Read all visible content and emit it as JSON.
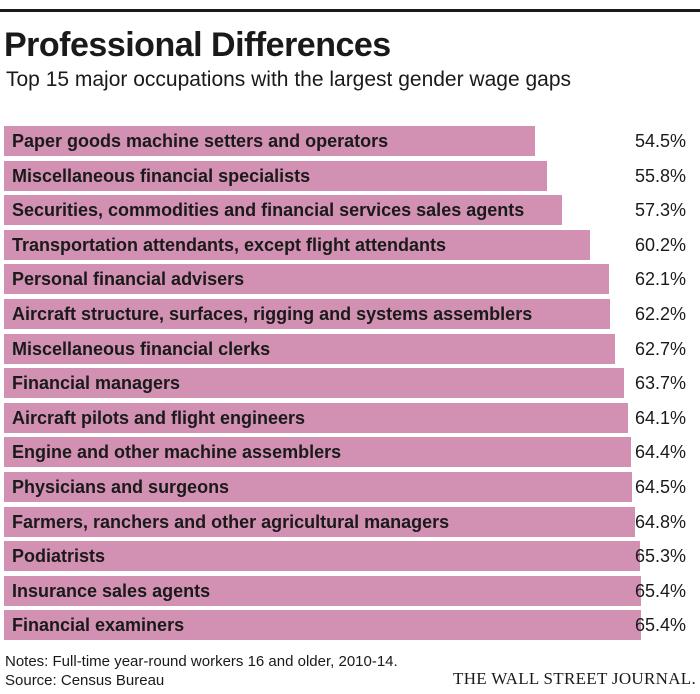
{
  "header": {
    "title": "Professional Differences",
    "subtitle": "Top 15 major occupations with the largest gender wage gaps"
  },
  "chart_data": {
    "type": "bar",
    "orientation": "horizontal",
    "bar_color": "#d291b2",
    "value_suffix": "%",
    "categories": [
      "Paper goods machine setters and operators",
      "Miscellaneous financial specialists",
      "Securities, commodities and financial services sales agents",
      "Transportation attendants, except flight attendants",
      "Personal financial advisers",
      "Aircraft structure, surfaces, rigging and systems assemblers",
      "Miscellaneous financial clerks",
      "Financial managers",
      "Aircraft pilots and flight engineers",
      "Engine and other machine assemblers",
      "Physicians and surgeons",
      "Farmers, ranchers and other agricultural managers",
      "Podiatrists",
      "Insurance sales agents",
      "Financial examiners"
    ],
    "values": [
      54.5,
      55.8,
      57.3,
      60.2,
      62.1,
      62.2,
      62.7,
      63.7,
      64.1,
      64.4,
      64.5,
      64.8,
      65.3,
      65.4,
      65.4
    ],
    "value_labels": [
      "54.5%",
      "55.8%",
      "57.3%",
      "60.2%",
      "62.1%",
      "62.2%",
      "62.7%",
      "63.7%",
      "64.1%",
      "64.4%",
      "64.5%",
      "64.8%",
      "65.3%",
      "65.4%",
      "65.4%"
    ],
    "xlim": [
      0,
      65.4
    ]
  },
  "footer": {
    "notes": "Notes: Full-time year-round workers 16 and older, 2010-14.",
    "source": "Source: Census Bureau",
    "publisher": "THE WALL STREET JOURNAL."
  }
}
